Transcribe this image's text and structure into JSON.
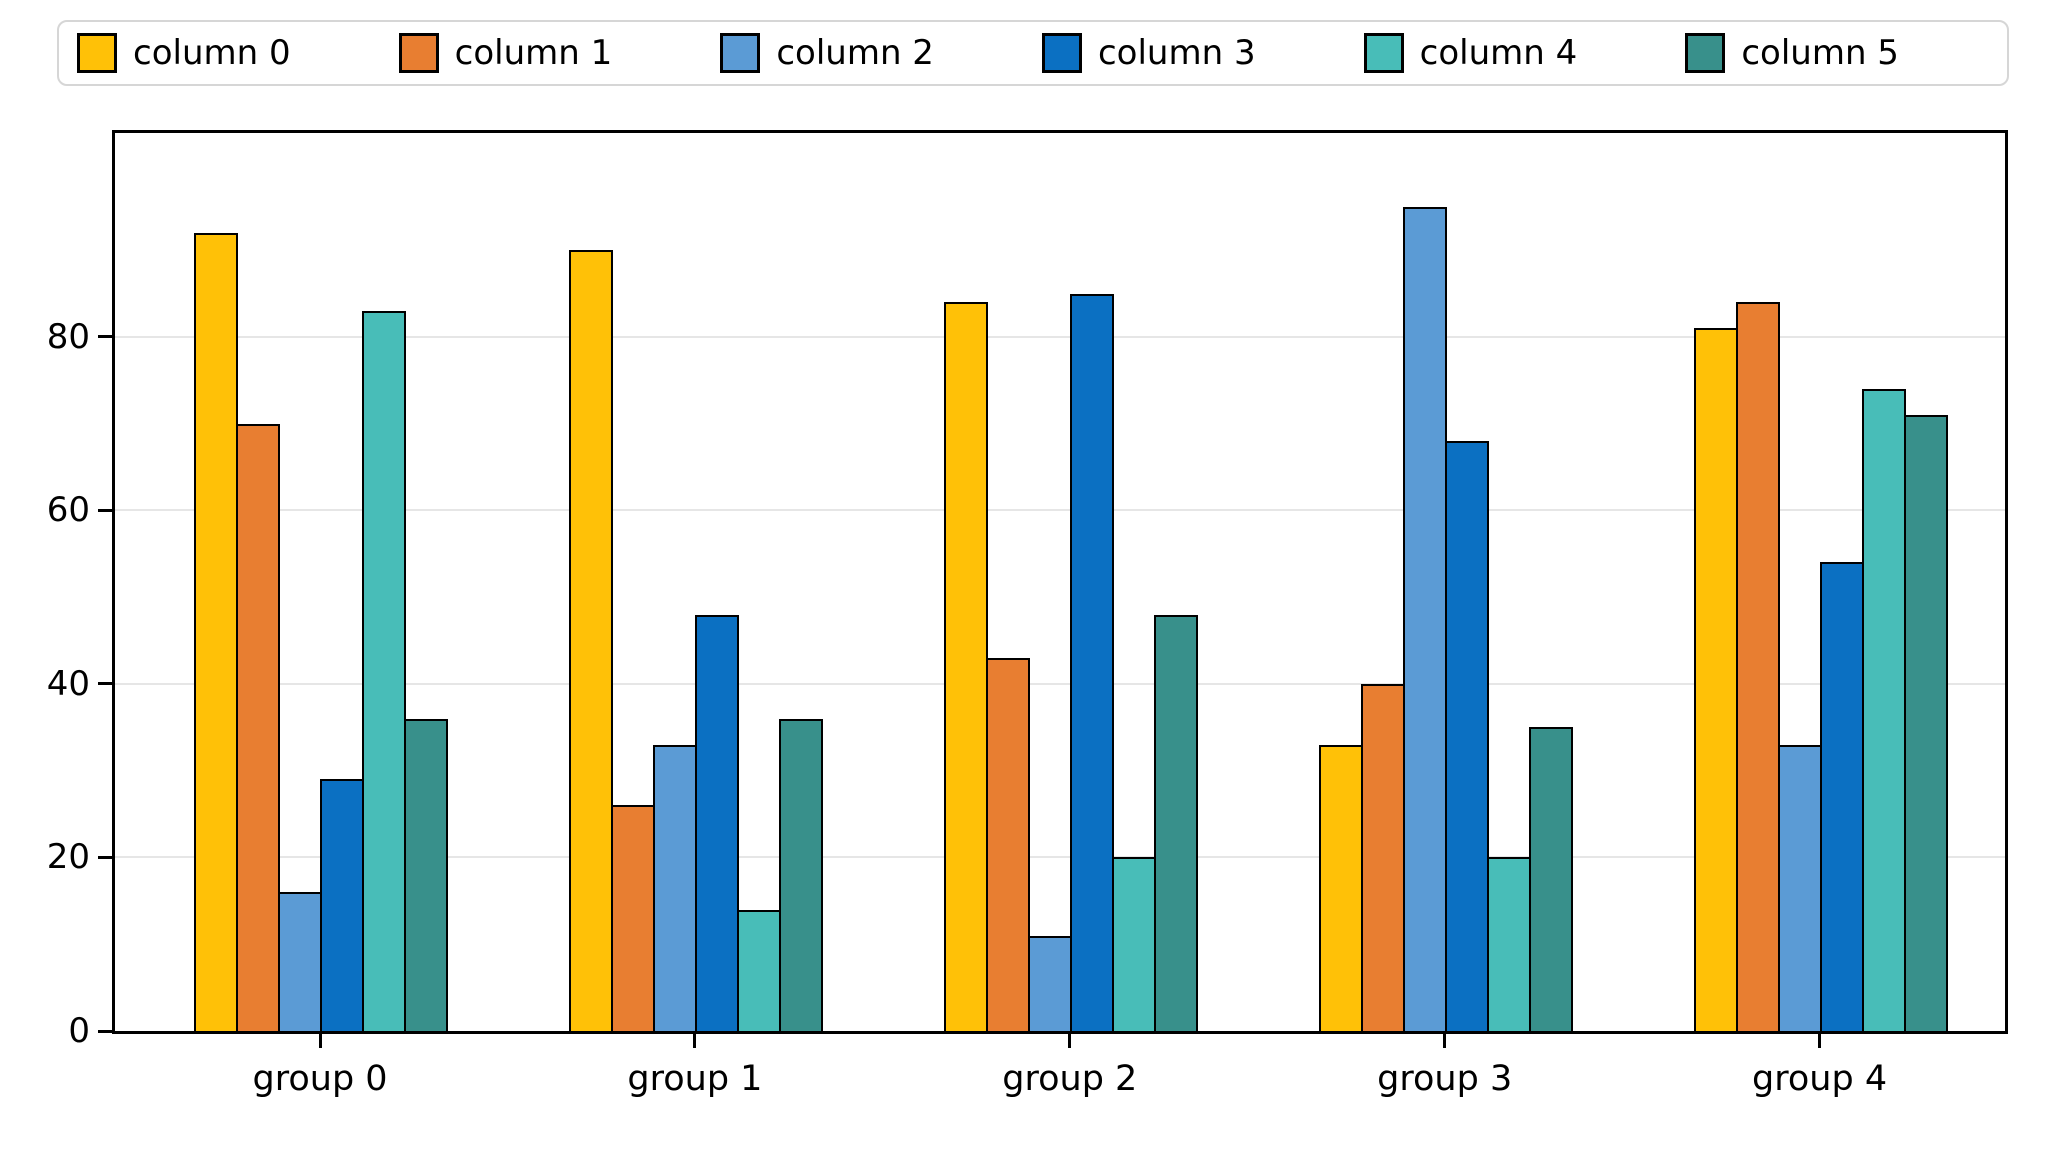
{
  "chart_data": {
    "type": "bar",
    "title": "",
    "xlabel": "",
    "ylabel": "",
    "categories": [
      "group 0",
      "group 1",
      "group 2",
      "group 3",
      "group 4"
    ],
    "series": [
      {
        "name": "column 0",
        "color": "#FFC107",
        "values": [
          92,
          90,
          84,
          33,
          81
        ]
      },
      {
        "name": "column 1",
        "color": "#E87E31",
        "values": [
          70,
          26,
          43,
          40,
          84
        ]
      },
      {
        "name": "column 2",
        "color": "#5B9BD5",
        "values": [
          16,
          33,
          11,
          95,
          33
        ]
      },
      {
        "name": "column 3",
        "color": "#0B70C2",
        "values": [
          29,
          48,
          85,
          68,
          54
        ]
      },
      {
        "name": "column 4",
        "color": "#48BDB8",
        "values": [
          83,
          14,
          20,
          20,
          74
        ]
      },
      {
        "name": "column 5",
        "color": "#38908B",
        "values": [
          36,
          36,
          48,
          35,
          71
        ]
      }
    ],
    "yticks": [
      0,
      20,
      40,
      60,
      80
    ],
    "ylim": [
      0,
      103.5
    ],
    "grid": "horizontal",
    "grid_color": "#E6E6E6",
    "bar_edge_color": "#000000",
    "legend_position": "top"
  }
}
